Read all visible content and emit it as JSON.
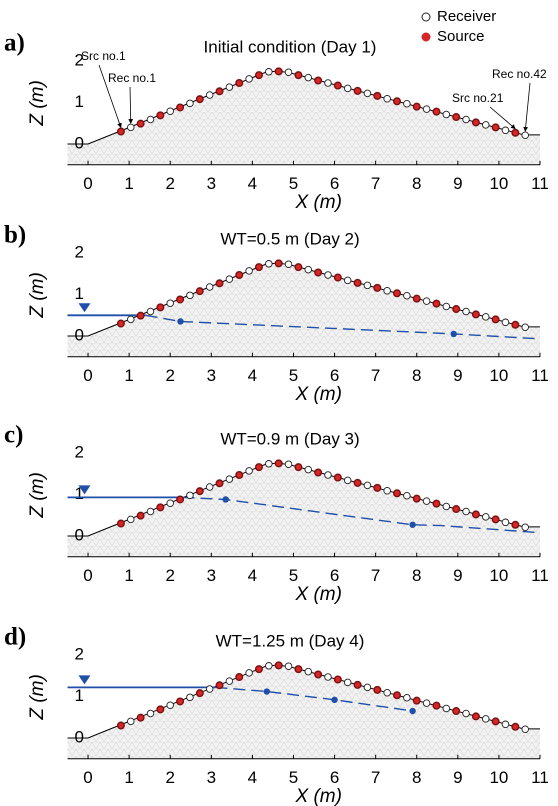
{
  "chart_data": [
    {
      "type": "line",
      "panel_label": "a)",
      "title": "Initial condition (Day 1)",
      "x_label": "X (m)",
      "y_label": "Z (m)",
      "xlim": [
        -0.5,
        11
      ],
      "ylim": [
        -0.5,
        2
      ],
      "xticks": [
        0,
        1,
        2,
        3,
        4,
        5,
        6,
        7,
        8,
        9,
        10,
        11
      ],
      "yticks": [
        0,
        1,
        2
      ],
      "surface": {
        "x": [
          -0.5,
          0,
          0.75,
          4.3,
          4.6,
          4.9,
          10.6,
          11
        ],
        "y": [
          0,
          0,
          0.3,
          1.72,
          1.76,
          1.72,
          0.22,
          0.22
        ]
      },
      "markers": [
        {
          "name": "Receiver",
          "color": "#ffffff",
          "x": [
            1.04,
            1.52,
            2.0,
            2.48,
            2.96,
            3.44,
            3.92,
            4.4,
            4.88,
            5.36,
            5.84,
            6.32,
            6.8,
            7.28,
            7.76,
            8.24,
            8.72,
            9.2,
            9.68,
            10.16,
            10.64
          ],
          "values": [
            0.4,
            0.59,
            0.79,
            0.98,
            1.18,
            1.37,
            1.57,
            1.74,
            1.73,
            1.6,
            1.47,
            1.34,
            1.22,
            1.09,
            0.97,
            0.84,
            0.71,
            0.59,
            0.46,
            0.33,
            0.21
          ]
        },
        {
          "name": "Source",
          "color": "#d62728",
          "x": [
            0.8,
            1.28,
            1.76,
            2.24,
            2.72,
            3.2,
            3.68,
            4.16,
            4.64,
            5.12,
            5.6,
            6.08,
            6.56,
            7.04,
            7.52,
            8.0,
            8.48,
            8.96,
            9.44,
            9.92,
            10.4
          ],
          "values": [
            0.3,
            0.49,
            0.69,
            0.88,
            1.08,
            1.27,
            1.47,
            1.66,
            1.75,
            1.66,
            1.53,
            1.41,
            1.28,
            1.16,
            1.03,
            0.9,
            0.78,
            0.65,
            0.52,
            0.4,
            0.27
          ]
        }
      ],
      "annotations": [
        "Src no.1",
        "Rec no.1",
        "Rec no.42",
        "Src no.21"
      ]
    },
    {
      "type": "line",
      "panel_label": "b)",
      "title": "WT=0.5 m (Day 2)",
      "x_label": "X (m)",
      "y_label": "Z (m)",
      "xlim": [
        -0.5,
        11
      ],
      "ylim": [
        -0.5,
        2
      ],
      "xticks": [
        0,
        1,
        2,
        3,
        4,
        5,
        6,
        7,
        8,
        9,
        10,
        11
      ],
      "yticks": [
        0,
        1,
        2
      ],
      "surface": {
        "x": [
          -0.5,
          0,
          0.75,
          4.3,
          4.6,
          4.9,
          10.6,
          11
        ],
        "y": [
          0,
          0,
          0.3,
          1.72,
          1.76,
          1.72,
          0.22,
          0.22
        ]
      },
      "markers": [
        {
          "color": "#ffffff",
          "x": [
            1.04,
            1.52,
            2.0,
            2.48,
            2.96,
            3.44,
            3.92,
            4.4,
            4.88,
            5.36,
            5.84,
            6.32,
            6.8,
            7.28,
            7.76,
            8.24,
            8.72,
            9.2,
            9.68,
            10.16,
            10.64
          ],
          "values": [
            0.4,
            0.59,
            0.79,
            0.98,
            1.18,
            1.37,
            1.57,
            1.74,
            1.73,
            1.6,
            1.47,
            1.34,
            1.22,
            1.09,
            0.97,
            0.84,
            0.71,
            0.59,
            0.46,
            0.33,
            0.21
          ]
        },
        {
          "color": "#d62728",
          "x": [
            0.8,
            1.28,
            1.76,
            2.24,
            2.72,
            3.2,
            3.68,
            4.16,
            4.64,
            5.12,
            5.6,
            6.08,
            6.56,
            7.04,
            7.52,
            8.0,
            8.48,
            8.96,
            9.44,
            9.92,
            10.4
          ],
          "values": [
            0.3,
            0.49,
            0.69,
            0.88,
            1.08,
            1.27,
            1.47,
            1.66,
            1.75,
            1.66,
            1.53,
            1.41,
            1.28,
            1.16,
            1.03,
            0.9,
            0.78,
            0.65,
            0.52,
            0.4,
            0.27
          ]
        }
      ],
      "water_color": "#1f4fa8",
      "water_level": {
        "x": [
          -0.5,
          1.4
        ],
        "y": [
          0.5,
          0.5
        ]
      },
      "water_table": {
        "x": [
          1.4,
          2.25,
          8.9,
          11
        ],
        "y": [
          0.5,
          0.35,
          0.05,
          -0.07
        ]
      },
      "wells": {
        "x": [
          2.25,
          8.9
        ],
        "y": [
          0.35,
          0.05
        ]
      }
    },
    {
      "type": "line",
      "panel_label": "c)",
      "title": "WT=0.9 m (Day 3)",
      "x_label": "X (m)",
      "y_label": "Z (m)",
      "xlim": [
        -0.5,
        11
      ],
      "ylim": [
        -0.5,
        2
      ],
      "xticks": [
        0,
        1,
        2,
        3,
        4,
        5,
        6,
        7,
        8,
        9,
        10,
        11
      ],
      "yticks": [
        0,
        1,
        2
      ],
      "surface": {
        "x": [
          -0.5,
          0,
          0.75,
          4.3,
          4.6,
          4.9,
          10.6,
          11
        ],
        "y": [
          0,
          0,
          0.3,
          1.72,
          1.76,
          1.72,
          0.22,
          0.22
        ]
      },
      "markers": [
        {
          "color": "#ffffff",
          "x": [
            1.04,
            1.52,
            2.0,
            2.48,
            2.96,
            3.44,
            3.92,
            4.4,
            4.88,
            5.36,
            5.84,
            6.32,
            6.8,
            7.28,
            7.76,
            8.24,
            8.72,
            9.2,
            9.68,
            10.16,
            10.64
          ],
          "values": [
            0.4,
            0.59,
            0.79,
            0.98,
            1.18,
            1.37,
            1.57,
            1.74,
            1.73,
            1.6,
            1.47,
            1.34,
            1.22,
            1.09,
            0.97,
            0.84,
            0.71,
            0.59,
            0.46,
            0.33,
            0.21
          ]
        },
        {
          "color": "#d62728",
          "x": [
            0.8,
            1.28,
            1.76,
            2.24,
            2.72,
            3.2,
            3.68,
            4.16,
            4.64,
            5.12,
            5.6,
            6.08,
            6.56,
            7.04,
            7.52,
            8.0,
            8.48,
            8.96,
            9.44,
            9.92,
            10.4
          ],
          "values": [
            0.3,
            0.49,
            0.69,
            0.88,
            1.08,
            1.27,
            1.47,
            1.66,
            1.75,
            1.66,
            1.53,
            1.41,
            1.28,
            1.16,
            1.03,
            0.9,
            0.78,
            0.65,
            0.52,
            0.4,
            0.27
          ]
        }
      ],
      "water_color": "#1f4fa8",
      "water_level": {
        "x": [
          -0.5,
          2.3
        ],
        "y": [
          0.93,
          0.93
        ]
      },
      "water_table": {
        "x": [
          2.3,
          3.35,
          7.9,
          8.6,
          11
        ],
        "y": [
          0.93,
          0.88,
          0.27,
          0.25,
          0.08
        ]
      },
      "wells": {
        "x": [
          3.35,
          7.9
        ],
        "y": [
          0.88,
          0.27
        ]
      }
    },
    {
      "type": "line",
      "panel_label": "d)",
      "title": "WT=1.25 m (Day 4)",
      "x_label": "X (m)",
      "y_label": "Z (m)",
      "xlim": [
        -0.5,
        11
      ],
      "ylim": [
        -0.5,
        2
      ],
      "xticks": [
        0,
        1,
        2,
        3,
        4,
        5,
        6,
        7,
        8,
        9,
        10,
        11
      ],
      "yticks": [
        0,
        1,
        2
      ],
      "surface": {
        "x": [
          -0.5,
          0,
          0.75,
          4.3,
          4.6,
          4.9,
          10.6,
          11
        ],
        "y": [
          0,
          0,
          0.3,
          1.72,
          1.76,
          1.72,
          0.22,
          0.22
        ]
      },
      "markers": [
        {
          "color": "#ffffff",
          "x": [
            1.04,
            1.52,
            2.0,
            2.48,
            2.96,
            3.44,
            3.92,
            4.4,
            4.88,
            5.36,
            5.84,
            6.32,
            6.8,
            7.28,
            7.76,
            8.24,
            8.72,
            9.2,
            9.68,
            10.16,
            10.64
          ],
          "values": [
            0.4,
            0.59,
            0.79,
            0.98,
            1.18,
            1.37,
            1.57,
            1.74,
            1.73,
            1.6,
            1.47,
            1.34,
            1.22,
            1.09,
            0.97,
            0.84,
            0.71,
            0.59,
            0.46,
            0.33,
            0.21
          ]
        },
        {
          "color": "#d62728",
          "x": [
            0.8,
            1.28,
            1.76,
            2.24,
            2.72,
            3.2,
            3.68,
            4.16,
            4.64,
            5.12,
            5.6,
            6.08,
            6.56,
            7.04,
            7.52,
            8.0,
            8.48,
            8.96,
            9.44,
            9.92,
            10.4
          ],
          "values": [
            0.3,
            0.49,
            0.69,
            0.88,
            1.08,
            1.27,
            1.47,
            1.66,
            1.75,
            1.66,
            1.53,
            1.41,
            1.28,
            1.16,
            1.03,
            0.9,
            0.78,
            0.65,
            0.52,
            0.4,
            0.27
          ]
        }
      ],
      "water_color": "#1f4fa8",
      "water_level": {
        "x": [
          -0.5,
          3.1
        ],
        "y": [
          1.22,
          1.22
        ]
      },
      "water_table": {
        "x": [
          3.1,
          4.35,
          6.0,
          7.9
        ],
        "y": [
          1.22,
          1.12,
          0.92,
          0.65
        ]
      },
      "wells": {
        "x": [
          4.35,
          6.0,
          7.9
        ],
        "y": [
          1.12,
          0.92,
          0.65
        ]
      }
    }
  ]
}
